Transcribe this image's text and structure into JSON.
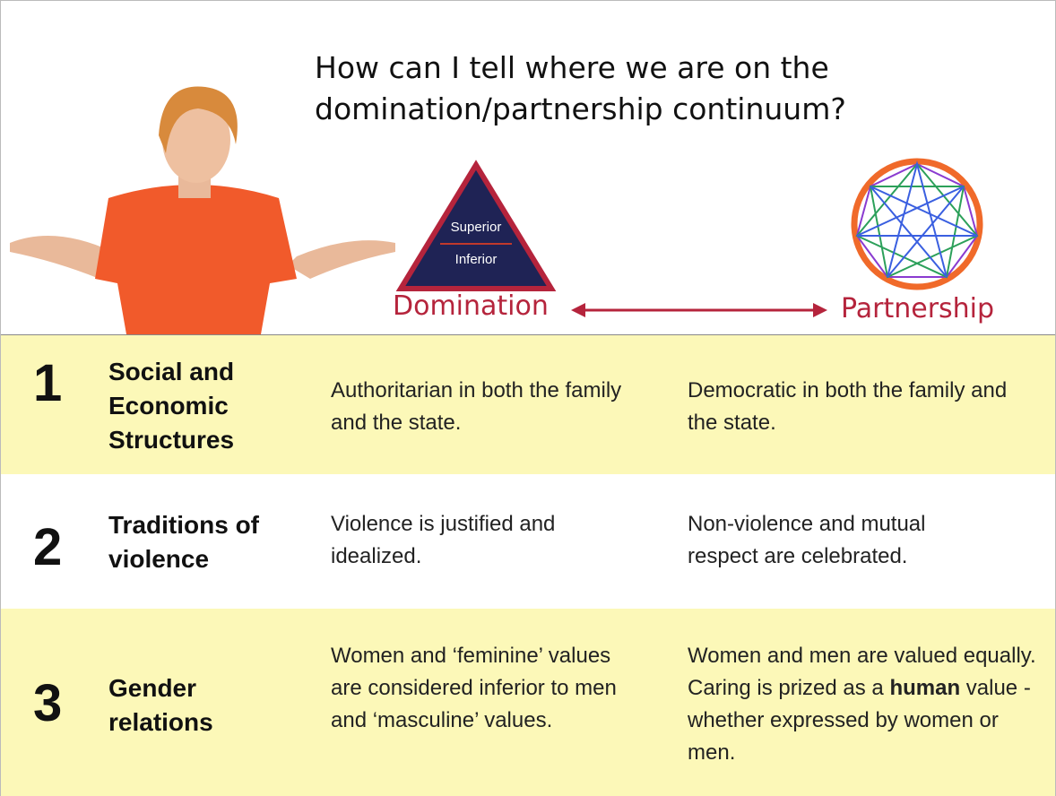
{
  "header": {
    "title_lines": [
      "How can I tell where we are on the",
      "domination/partnership continuum?"
    ]
  },
  "diagram": {
    "superior": "Superior",
    "inferior": "Inferior",
    "domination": "Domination",
    "partnership": "Partnership"
  },
  "table": {
    "rows": [
      {
        "number": "1",
        "heading": "Social and Economic Structures",
        "domination": "Authoritarian in both the family and the state.",
        "partnership": "Democratic in both the family and the state."
      },
      {
        "number": "2",
        "heading": "Traditions of violence",
        "domination": "Violence is justified and idealized.",
        "partnership": "Non-violence and mutual respect are celebrated."
      },
      {
        "number": "3",
        "heading": "Gender relations",
        "domination": "Women and ‘feminine’ values are considered inferior to men and ‘masculine’ values.",
        "partnership": [
          "Women and men are valued equally.  Caring is prized as a ",
          "human",
          " value - whether expressed by women or men."
        ]
      }
    ]
  }
}
